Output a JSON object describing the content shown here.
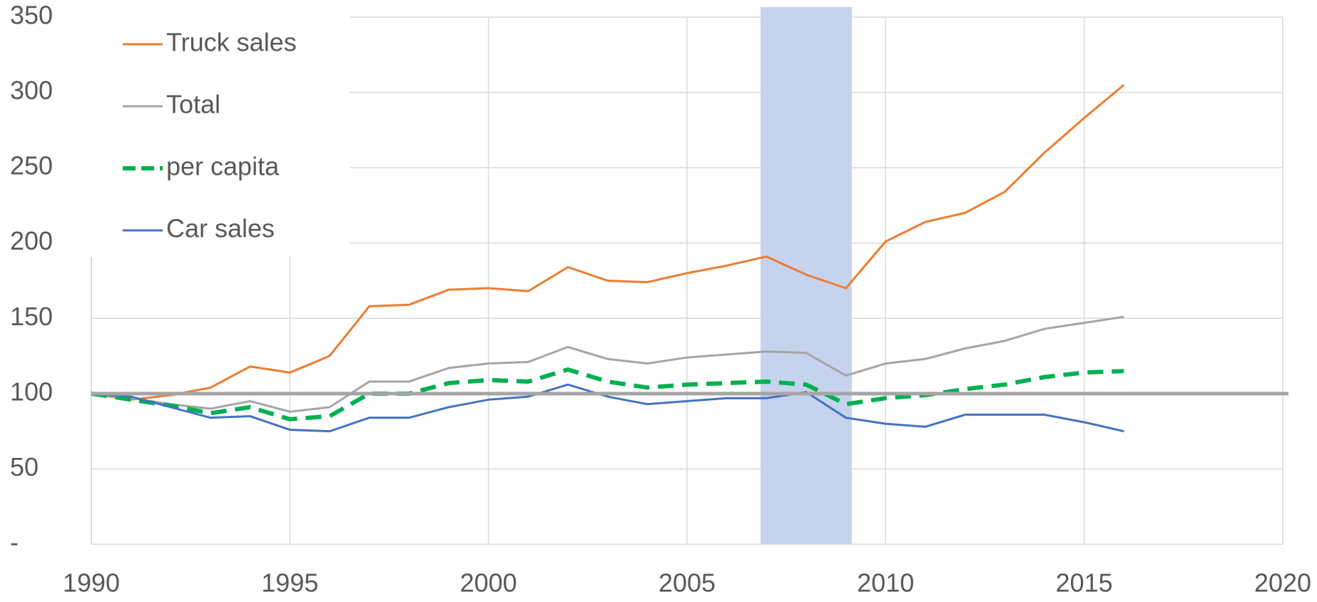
{
  "chart_data": {
    "type": "line",
    "x": [
      1990,
      1991,
      1992,
      1993,
      1994,
      1995,
      1996,
      1997,
      1998,
      1999,
      2000,
      2001,
      2002,
      2003,
      2004,
      2005,
      2006,
      2007,
      2008,
      2009,
      2010,
      2011,
      2012,
      2013,
      2014,
      2015,
      2016
    ],
    "series": [
      {
        "name": "Truck sales",
        "color": "#ed7d31",
        "style": "solid",
        "values": [
          100,
          96,
          99,
          104,
          118,
          114,
          125,
          158,
          159,
          169,
          170,
          168,
          184,
          175,
          174,
          180,
          185,
          191,
          179,
          170,
          201,
          214,
          220,
          234,
          260,
          283,
          305
        ]
      },
      {
        "name": "Total",
        "color": "#a5a5a5",
        "style": "solid",
        "values": [
          100,
          97,
          93,
          90,
          95,
          88,
          91,
          108,
          108,
          117,
          120,
          121,
          131,
          123,
          120,
          124,
          126,
          128,
          127,
          112,
          120,
          123,
          130,
          135,
          143,
          147,
          151
        ]
      },
      {
        "name": "per capita",
        "color": "#00b050",
        "style": "dashed",
        "values": [
          100,
          96,
          92,
          87,
          91,
          83,
          85,
          100,
          100,
          107,
          109,
          108,
          116,
          108,
          104,
          106,
          107,
          108,
          106,
          93,
          97,
          99,
          103,
          106,
          111,
          114,
          115
        ]
      },
      {
        "name": "Car sales",
        "color": "#4472c4",
        "style": "solid",
        "values": [
          100,
          98,
          91,
          84,
          85,
          76,
          75,
          84,
          84,
          91,
          96,
          98,
          106,
          98,
          93,
          95,
          97,
          97,
          101,
          84,
          80,
          78,
          86,
          86,
          86,
          81,
          75
        ]
      }
    ],
    "reference_line": 100,
    "shaded_span": [
      2006.85,
      2009.15
    ],
    "shaded_color": "#c5d3ee",
    "xlim": [
      1990,
      2020
    ],
    "xticks": [
      1990,
      1995,
      2000,
      2005,
      2010,
      2015,
      2020
    ],
    "ylim": [
      0,
      350
    ],
    "yticks": [
      {
        "value": 0,
        "label": "-"
      },
      50,
      100,
      150,
      200,
      250,
      300,
      350
    ],
    "grid": true,
    "legend": "upper left"
  }
}
